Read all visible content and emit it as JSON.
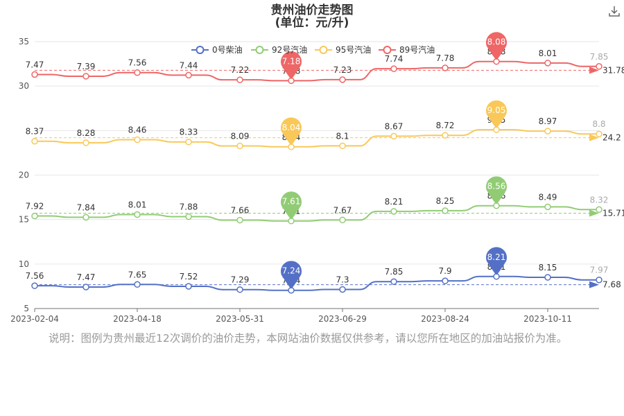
{
  "title": "贵州油价走势图",
  "subtitle": "(单位：元/升)",
  "note": "说明：图例为贵州最近12次调价的油价走势，本网站油价数据仅供参考，请以您所在地区的加油站报价为准。",
  "download_icon": "download-icon",
  "chart_data": {
    "type": "line",
    "title": "贵州油价走势图",
    "subtitle": "(单位：元/升)",
    "ylim": [
      5,
      35
    ],
    "yticks": [
      5,
      10,
      15,
      20,
      25,
      30,
      35
    ],
    "ytick_labels": [
      "5",
      "10",
      "15",
      "20",
      "",
      "30",
      "35"
    ],
    "xtick_labels": [
      "2023-02-04",
      "2023-04-18",
      "2023-05-31",
      "2023-06-29",
      "2023-08-24",
      "2023-10-11"
    ],
    "legend_position": "top-center",
    "grid": true,
    "series": [
      {
        "name": "0号柴油",
        "color": "#5470c6",
        "labels": [
          "7.56",
          "7.47",
          "7.65",
          "7.52",
          "7.29",
          "7.24",
          "7.3",
          "7.85",
          "7.9",
          "8.21",
          "8.15",
          "7.97"
        ],
        "values": [
          7.56,
          7.47,
          7.65,
          7.52,
          7.29,
          7.24,
          7.3,
          7.85,
          7.9,
          8.21,
          8.15,
          7.97
        ],
        "max_label": "8.21",
        "min_label": "7.24",
        "avg_label": "7.68"
      },
      {
        "name": "92号汽油",
        "color": "#91cc75",
        "labels": [
          "7.92",
          "7.84",
          "8.01",
          "7.88",
          "7.66",
          "7.61",
          "7.67",
          "8.21",
          "8.25",
          "8.56",
          "8.49",
          "8.32"
        ],
        "values": [
          7.92,
          7.84,
          8.01,
          7.88,
          7.66,
          7.61,
          7.67,
          8.21,
          8.25,
          8.56,
          8.49,
          8.32
        ],
        "max_label": "8.56",
        "min_label": "7.61",
        "avg_label": "15.71"
      },
      {
        "name": "95号汽油",
        "color": "#fac858",
        "labels": [
          "8.37",
          "8.28",
          "8.46",
          "8.33",
          "8.09",
          "8.04",
          "8.1",
          "8.67",
          "8.72",
          "9.05",
          "8.97",
          "8.8"
        ],
        "values": [
          8.37,
          8.28,
          8.46,
          8.33,
          8.09,
          8.04,
          8.1,
          8.67,
          8.72,
          9.05,
          8.97,
          8.8
        ],
        "max_label": "9.05",
        "min_label": "8.04",
        "avg_label": "24.2"
      },
      {
        "name": "89号汽油",
        "color": "#ee6666",
        "labels": [
          "7.47",
          "7.39",
          "7.56",
          "7.44",
          "7.22",
          "7.18",
          "7.23",
          "7.74",
          "7.78",
          "8.08",
          "8.01",
          "7.85"
        ],
        "values": [
          7.47,
          7.39,
          7.56,
          7.44,
          7.22,
          7.18,
          7.23,
          7.74,
          7.78,
          8.08,
          8.01,
          7.85
        ],
        "max_label": "8.08",
        "min_label": "7.18",
        "avg_label": "31.78"
      }
    ]
  }
}
